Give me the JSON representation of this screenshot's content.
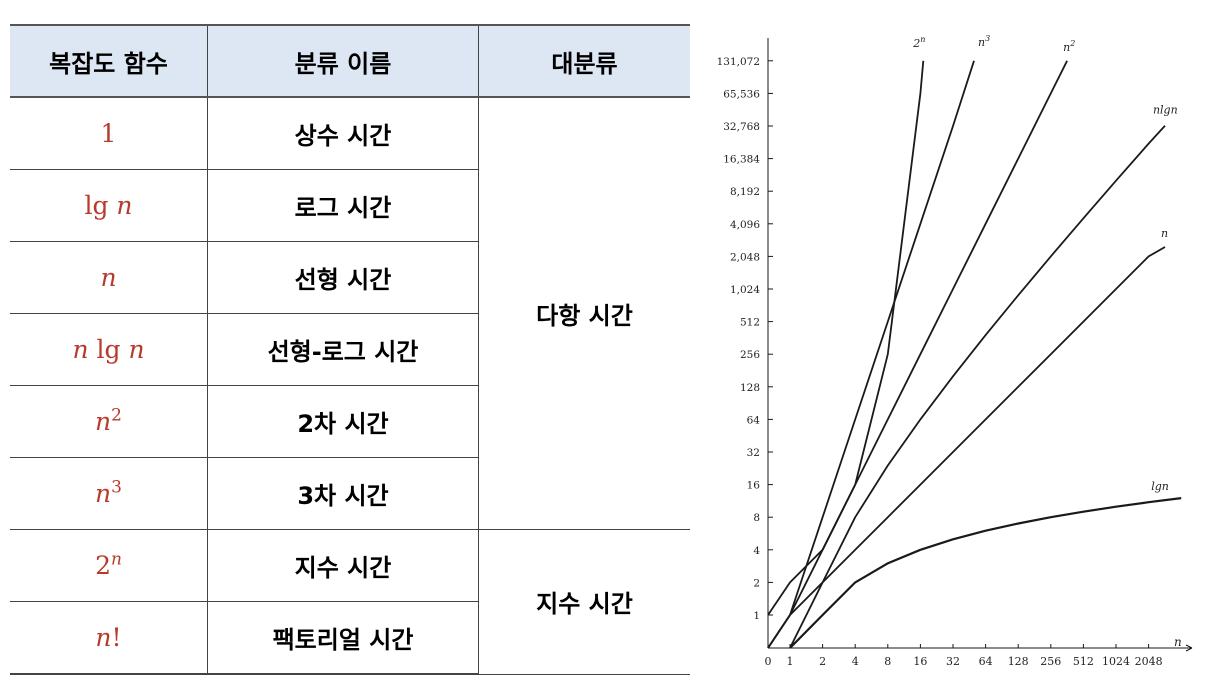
{
  "table": {
    "headers": [
      "복잡도 함수",
      "분류 이름",
      "대분류"
    ],
    "rows": [
      {
        "func": {
          "base": "1"
        },
        "name": "상수 시간"
      },
      {
        "func": {
          "base": "lg",
          "var": "n"
        },
        "name": "로그 시간"
      },
      {
        "func": {
          "var": "n"
        },
        "name": "선형 시간"
      },
      {
        "func": {
          "var": "n",
          "base": "lg",
          "var2": "n"
        },
        "name": "선형-로그 시간"
      },
      {
        "func": {
          "var": "n",
          "sup": "2"
        },
        "name": "2차 시간"
      },
      {
        "func": {
          "var": "n",
          "sup": "3"
        },
        "name": "3차 시간"
      },
      {
        "func": {
          "base": "2",
          "sup": "n"
        },
        "name": "지수 시간"
      },
      {
        "func": {
          "var": "n",
          "suffix": "!"
        },
        "name": "팩토리얼 시간"
      }
    ],
    "groups": [
      {
        "label": "다항 시간",
        "span": 6
      },
      {
        "label": "지수 시간",
        "span": 2
      }
    ],
    "colors": {
      "header_bg": "#dde6f3",
      "func_text": "#b83a2c"
    }
  },
  "chart_data": {
    "type": "line",
    "xlabel": "n",
    "ylabel": "",
    "x_scale": "log2",
    "y_scale": "log2",
    "x_ticks": [
      "0",
      "1",
      "2",
      "4",
      "8",
      "16",
      "32",
      "64",
      "128",
      "256",
      "512",
      "1024",
      "2048"
    ],
    "y_ticks": [
      "1",
      "2",
      "4",
      "8",
      "16",
      "32",
      "64",
      "128",
      "256",
      "512",
      "1,024",
      "2,048",
      "4,096",
      "8,192",
      "16,384",
      "32,768",
      "65,536",
      "131,072"
    ],
    "series": [
      {
        "name": "2ⁿ",
        "x": [
          0,
          1,
          2,
          4,
          8,
          16,
          17
        ],
        "y": [
          1,
          2,
          4,
          16,
          256,
          65536,
          131072
        ]
      },
      {
        "name": "n³",
        "x": [
          0,
          1,
          2,
          4,
          8,
          16,
          32,
          50
        ],
        "y": [
          0,
          1,
          8,
          64,
          512,
          4096,
          32768,
          131072
        ]
      },
      {
        "name": "n²",
        "x": [
          0,
          1,
          2,
          4,
          8,
          16,
          32,
          64,
          128,
          256,
          362
        ],
        "y": [
          0,
          1,
          4,
          16,
          64,
          256,
          1024,
          4096,
          16384,
          65536,
          131072
        ]
      },
      {
        "name": "nlgn",
        "x": [
          1,
          2,
          4,
          8,
          16,
          32,
          64,
          128,
          256,
          512,
          1024,
          2048,
          2900
        ],
        "y": [
          0,
          2,
          8,
          24,
          64,
          160,
          384,
          896,
          2048,
          4608,
          10240,
          22528,
          33000
        ]
      },
      {
        "name": "n",
        "x": [
          0,
          1,
          2,
          4,
          8,
          16,
          32,
          64,
          128,
          256,
          512,
          1024,
          2048,
          2900
        ],
        "y": [
          0,
          1,
          2,
          4,
          8,
          16,
          32,
          64,
          128,
          256,
          512,
          1024,
          2048,
          2500
        ]
      },
      {
        "name": "lgn",
        "x": [
          1,
          2,
          4,
          8,
          16,
          32,
          64,
          128,
          256,
          512,
          1024,
          2048,
          4096
        ],
        "y": [
          0,
          1,
          2,
          3,
          4,
          5,
          6,
          7,
          8,
          9,
          10,
          11,
          12
        ]
      }
    ],
    "series_labels": [
      {
        "base": "2",
        "sup": "n"
      },
      {
        "base": "n",
        "sup": "3"
      },
      {
        "base": "n",
        "sup": "2"
      },
      {
        "base": "nlg",
        "tail": "n"
      },
      {
        "base": "n"
      },
      {
        "base": "lg",
        "tail": "n"
      }
    ],
    "line_color": "#1a1a1a"
  }
}
